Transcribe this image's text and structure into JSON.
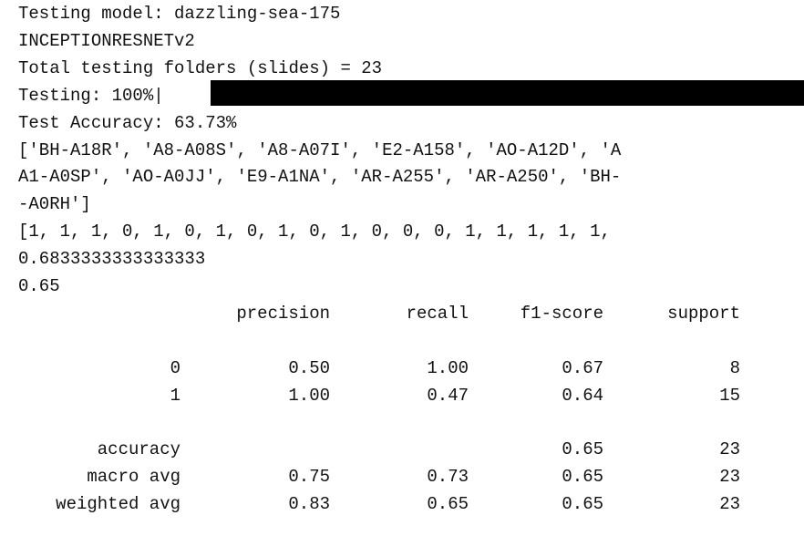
{
  "log_lines": [
    "Testing model: dazzling-sea-175",
    "INCEPTIONRESNETv2",
    "Total testing folders (slides) = 23",
    "Testing: 100%|",
    "Test Accuracy: 63.73%",
    "['BH-A18R', 'A8-A08S', 'A8-A07I', 'E2-A158', 'AO-A12D', 'A",
    "A1-A0SP', 'AO-A0JJ', 'E9-A1NA', 'AR-A255', 'AR-A250', 'BH-",
    "-A0RH']",
    "[1, 1, 1, 0, 1, 0, 1, 0, 1, 0, 1, 0, 0, 0, 1, 1, 1, 1, 1,",
    "0.6833333333333333",
    "0.65"
  ],
  "classification_report": {
    "columns": [
      "precision",
      "recall",
      "f1-score",
      "support"
    ],
    "rows": [
      {
        "label": "0",
        "precision": "0.50",
        "recall": "1.00",
        "f1-score": "0.67",
        "support": "8"
      },
      {
        "label": "1",
        "precision": "1.00",
        "recall": "0.47",
        "f1-score": "0.64",
        "support": "15"
      },
      {
        "label": "accuracy",
        "f1-score": "0.65",
        "support": "23"
      },
      {
        "label": "macro avg",
        "precision": "0.75",
        "recall": "0.73",
        "f1-score": "0.65",
        "support": "23"
      },
      {
        "label": "weighted avg",
        "precision": "0.83",
        "recall": "0.65",
        "f1-score": "0.65",
        "support": "23"
      }
    ]
  }
}
